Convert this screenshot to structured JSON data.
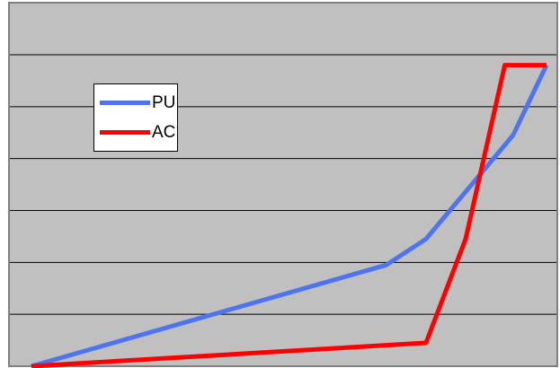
{
  "chart_data": {
    "type": "line",
    "title": "",
    "xlabel": "",
    "ylabel": "",
    "xlim": [
      0,
      100
    ],
    "ylim": [
      0,
      6
    ],
    "grid": true,
    "legend_position": "upper-left",
    "plot_background": "#c0c0c0",
    "gridline_color": "#000000",
    "series": [
      {
        "name": "PU",
        "color": "#4f74f0",
        "x": [
          0,
          68.9,
          76.6,
          93.5,
          100
        ],
        "y": [
          0,
          1.95,
          2.45,
          4.45,
          5.8
        ]
      },
      {
        "name": "AC",
        "color": "#ff0000",
        "x": [
          0,
          76.6,
          84.3,
          91.9,
          100
        ],
        "y": [
          0,
          0.45,
          2.45,
          5.8,
          5.8
        ]
      }
    ]
  }
}
